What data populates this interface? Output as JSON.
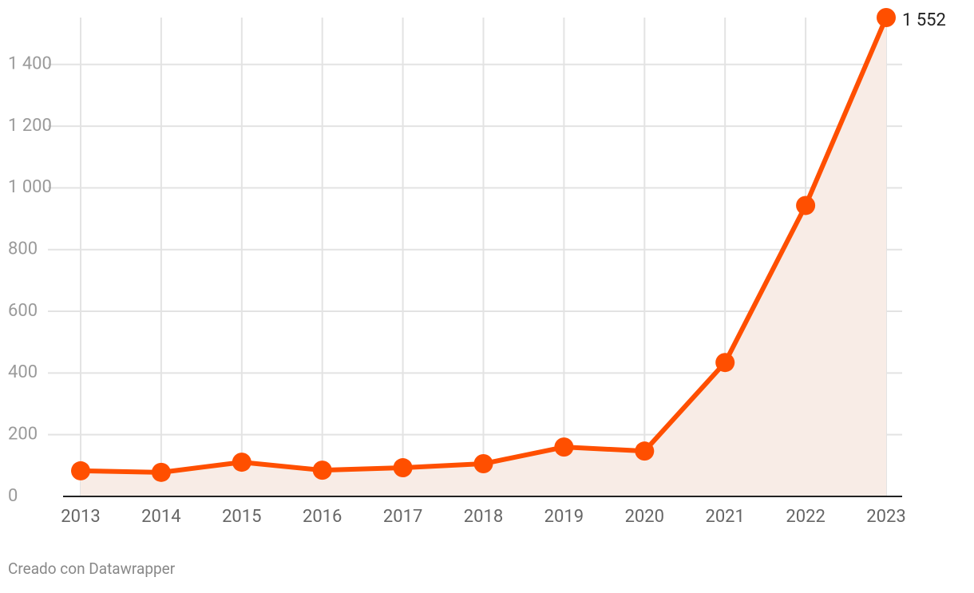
{
  "chart_data": {
    "type": "line",
    "area": true,
    "x": [
      2013,
      2014,
      2015,
      2016,
      2017,
      2018,
      2019,
      2020,
      2021,
      2022,
      2023
    ],
    "values": [
      83,
      78,
      111,
      85,
      93,
      106,
      160,
      147,
      434,
      943,
      1552
    ],
    "value_labels": [
      null,
      null,
      null,
      null,
      null,
      null,
      null,
      null,
      null,
      null,
      "1 552"
    ],
    "color": "#ff4f00",
    "area_color": "#f8ece6",
    "xlim": [
      2013,
      2023
    ],
    "xticks": [
      2013,
      2014,
      2015,
      2016,
      2017,
      2018,
      2019,
      2020,
      2021,
      2022,
      2023
    ],
    "ylim": [
      0,
      1552
    ],
    "yticks": [
      0,
      200,
      400,
      600,
      800,
      {
        "value": 1000,
        "label": "1 000"
      },
      {
        "value": 1200,
        "label": "1 200"
      },
      {
        "value": 1400,
        "label": "1 400"
      }
    ],
    "grid": true,
    "credit": "Creado con Datawrapper"
  }
}
